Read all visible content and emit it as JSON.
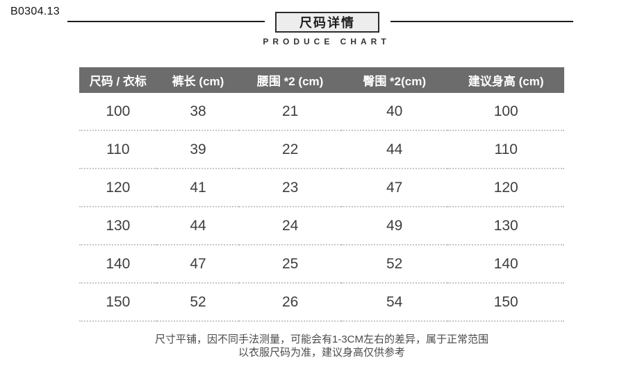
{
  "page": {
    "sku": "B0304.13",
    "title": "尺码详情",
    "subtitle": "PRODUCE CHART"
  },
  "chart_data": {
    "type": "table",
    "title": "尺码详情",
    "subtitle": "PRODUCE CHART",
    "columns": [
      "尺码 / 衣标",
      "裤长 (cm)",
      "腰围 *2 (cm)",
      "臀围 *2(cm)",
      "建议身高 (cm)"
    ],
    "rows": [
      [
        "100",
        "38",
        "21",
        "40",
        "100"
      ],
      [
        "110",
        "39",
        "22",
        "44",
        "110"
      ],
      [
        "120",
        "41",
        "23",
        "47",
        "120"
      ],
      [
        "130",
        "44",
        "24",
        "49",
        "130"
      ],
      [
        "140",
        "47",
        "25",
        "52",
        "140"
      ],
      [
        "150",
        "52",
        "26",
        "54",
        "150"
      ]
    ]
  },
  "notes": {
    "line1": "尺寸平铺，因不同手法测量，可能会有1-3CM左右的差异，属于正常范围",
    "line2": "以衣服尺码为准，建议身高仅供参考"
  },
  "colors": {
    "table_header_bg": "#6c6c6c",
    "table_header_text": "#ffffff",
    "body_text": "#3e3e3e",
    "divider_dotted": "#c6c6c6",
    "rule_line": "#1c1c1c",
    "title_box_bg": "#ededed"
  }
}
